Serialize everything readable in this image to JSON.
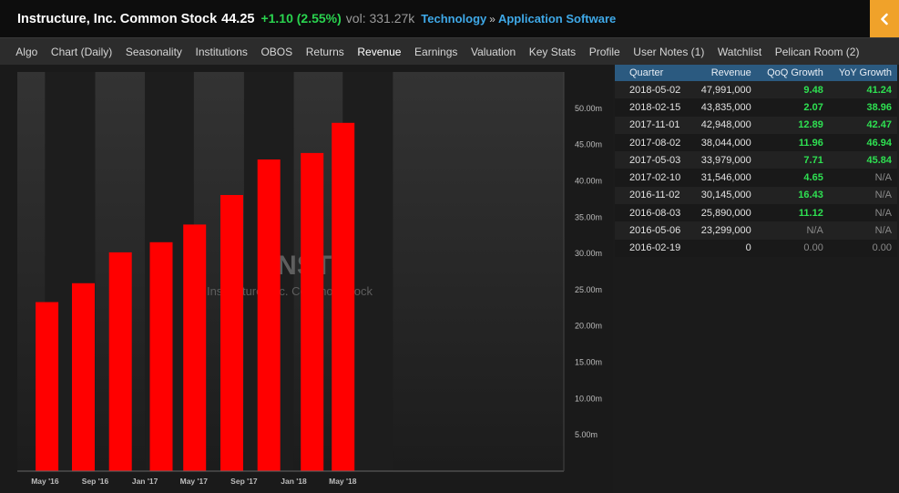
{
  "header": {
    "title": "Instructure, Inc. Common Stock",
    "price": "44.25",
    "change": "+1.10 (2.55%)",
    "volume": "vol: 331.27k",
    "sector": "Technology",
    "separator": "»",
    "industry": "Application Software",
    "collapse_icon": "chevron-left-icon"
  },
  "tabs": [
    {
      "label": "Algo"
    },
    {
      "label": "Chart (Daily)"
    },
    {
      "label": "Seasonality"
    },
    {
      "label": "Institutions"
    },
    {
      "label": "OBOS"
    },
    {
      "label": "Returns"
    },
    {
      "label": "Revenue",
      "active": true
    },
    {
      "label": "Earnings"
    },
    {
      "label": "Valuation"
    },
    {
      "label": "Key Stats"
    },
    {
      "label": "Profile"
    },
    {
      "label": "User Notes (1)"
    },
    {
      "label": "Watchlist"
    },
    {
      "label": "Pelican Room (2)"
    }
  ],
  "watermark": {
    "symbol": "INST",
    "name": "Instructure, Inc. Common Stock"
  },
  "colors": {
    "bar": "#ff0000",
    "positive": "#2ee051",
    "table_header": "#2b5a80",
    "accent": "#f0a22a"
  },
  "chart_data": {
    "type": "bar",
    "categories": [
      "2016-02-19",
      "2016-05-06",
      "2016-08-03",
      "2016-11-02",
      "2017-02-10",
      "2017-05-03",
      "2017-08-02",
      "2017-11-01",
      "2018-02-15",
      "2018-05-02"
    ],
    "values": [
      0,
      23299000,
      25890000,
      30145000,
      31546000,
      33979000,
      38044000,
      42948000,
      43835000,
      47991000
    ],
    "y_ticks": [
      "5.00m",
      "10.00m",
      "15.00m",
      "20.00m",
      "25.00m",
      "30.00m",
      "35.00m",
      "40.00m",
      "45.00m",
      "50.00m"
    ],
    "x_ticks": [
      "May '16",
      "Sep '16",
      "Jan '17",
      "May '17",
      "Sep '17",
      "Jan '18",
      "May '18"
    ],
    "ylim": [
      0,
      55000000
    ],
    "xlabel": "",
    "ylabel": "",
    "title": ""
  },
  "table": {
    "columns": [
      "Quarter",
      "Revenue",
      "QoQ Growth",
      "YoY Growth"
    ],
    "rows": [
      {
        "quarter": "2018-05-02",
        "revenue": "47,991,000",
        "qoq": "9.48",
        "yoy": "41.24"
      },
      {
        "quarter": "2018-02-15",
        "revenue": "43,835,000",
        "qoq": "2.07",
        "yoy": "38.96"
      },
      {
        "quarter": "2017-11-01",
        "revenue": "42,948,000",
        "qoq": "12.89",
        "yoy": "42.47"
      },
      {
        "quarter": "2017-08-02",
        "revenue": "38,044,000",
        "qoq": "11.96",
        "yoy": "46.94"
      },
      {
        "quarter": "2017-05-03",
        "revenue": "33,979,000",
        "qoq": "7.71",
        "yoy": "45.84"
      },
      {
        "quarter": "2017-02-10",
        "revenue": "31,546,000",
        "qoq": "4.65",
        "yoy": "N/A"
      },
      {
        "quarter": "2016-11-02",
        "revenue": "30,145,000",
        "qoq": "16.43",
        "yoy": "N/A"
      },
      {
        "quarter": "2016-08-03",
        "revenue": "25,890,000",
        "qoq": "11.12",
        "yoy": "N/A"
      },
      {
        "quarter": "2016-05-06",
        "revenue": "23,299,000",
        "qoq": "N/A",
        "yoy": "N/A"
      },
      {
        "quarter": "2016-02-19",
        "revenue": "0",
        "qoq": "0.00",
        "yoy": "0.00"
      }
    ]
  }
}
